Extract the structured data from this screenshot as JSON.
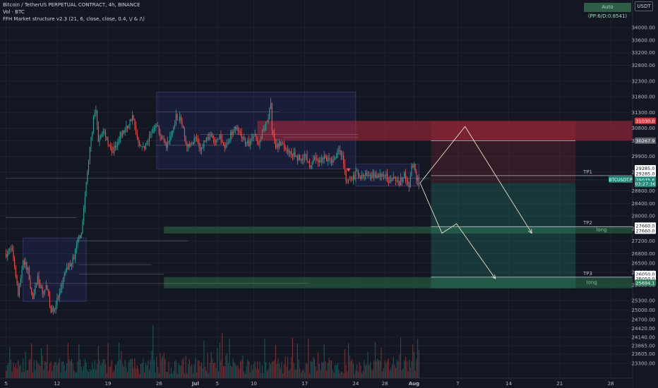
{
  "header": {
    "title": "Bitcoin / TetherUS PERPETUAL CONTRACT, 4h, BINANCE",
    "volume": "Vol · BTC",
    "indicator": "FFH Market structure v2.3 (21, 6, close, close, 0.4, \\/ & /\\)"
  },
  "currency_button": "USDT",
  "auto_badge": "Auto (PP:6/D:0.8541)",
  "colors": {
    "background": "#131722",
    "candle_up": "#26a69a",
    "candle_down": "#ef5350",
    "zone_red": "#b2283a",
    "zone_green": "#2e6b45",
    "range_box": "#2a2e6b",
    "projection": "#e8e3c8"
  },
  "chart_data": {
    "type": "candlestick",
    "y_axis": {
      "ylim": [
        22900,
        34700
      ],
      "ticks": [
        34000,
        33600,
        33200,
        32800,
        32300,
        31800,
        31300,
        30800,
        30400,
        29900,
        29400,
        28800,
        28400,
        28000,
        27600,
        27200,
        26800,
        26500,
        26200,
        25800,
        25300,
        25000,
        24700,
        24420,
        24140,
        23865,
        23605,
        23300
      ]
    },
    "x_axis": {
      "ticks": [
        {
          "label": "5",
          "pos": 0
        },
        {
          "label": "12",
          "pos": 42
        },
        {
          "label": "19",
          "pos": 84
        },
        {
          "label": "26",
          "pos": 126
        },
        {
          "label": "Jul",
          "pos": 156
        },
        {
          "label": "5",
          "pos": 174
        },
        {
          "label": "10",
          "pos": 204
        },
        {
          "label": "17",
          "pos": 246
        },
        {
          "label": "24",
          "pos": 288
        },
        {
          "label": "28",
          "pos": 312
        },
        {
          "label": "Aug",
          "pos": 336
        },
        {
          "label": "7",
          "pos": 372
        },
        {
          "label": "14",
          "pos": 414
        },
        {
          "label": "21",
          "pos": 456
        },
        {
          "label": "28",
          "pos": 498
        }
      ],
      "range": [
        -5,
        516
      ]
    },
    "price_anchors": [
      [
        0,
        26800
      ],
      [
        5,
        26950
      ],
      [
        9,
        25900
      ],
      [
        10,
        25450
      ],
      [
        14,
        26600
      ],
      [
        18,
        26300
      ],
      [
        22,
        25300
      ],
      [
        26,
        26050
      ],
      [
        30,
        25500
      ],
      [
        33,
        25750
      ],
      [
        37,
        24950
      ],
      [
        40,
        25100
      ],
      [
        45,
        25600
      ],
      [
        48,
        26150
      ],
      [
        52,
        26400
      ],
      [
        56,
        26700
      ],
      [
        59,
        27200
      ],
      [
        62,
        27500
      ],
      [
        65,
        28600
      ],
      [
        68,
        29800
      ],
      [
        70,
        30450
      ],
      [
        72,
        31100
      ],
      [
        74,
        31300
      ],
      [
        76,
        30300
      ],
      [
        80,
        30750
      ],
      [
        84,
        30350
      ],
      [
        88,
        30050
      ],
      [
        92,
        30450
      ],
      [
        96,
        30650
      ],
      [
        100,
        30850
      ],
      [
        104,
        31200
      ],
      [
        108,
        30500
      ],
      [
        112,
        30150
      ],
      [
        116,
        30300
      ],
      [
        120,
        30650
      ],
      [
        124,
        30900
      ],
      [
        128,
        30500
      ],
      [
        132,
        30250
      ],
      [
        136,
        30550
      ],
      [
        140,
        31200
      ],
      [
        144,
        31050
      ],
      [
        148,
        30300
      ],
      [
        152,
        30250
      ],
      [
        156,
        30500
      ],
      [
        160,
        30050
      ],
      [
        164,
        30450
      ],
      [
        168,
        30550
      ],
      [
        172,
        30300
      ],
      [
        176,
        30500
      ],
      [
        180,
        30200
      ],
      [
        184,
        30500
      ],
      [
        188,
        30900
      ],
      [
        192,
        30600
      ],
      [
        196,
        30400
      ],
      [
        200,
        30300
      ],
      [
        204,
        30550
      ],
      [
        208,
        30400
      ],
      [
        212,
        30700
      ],
      [
        216,
        31200
      ],
      [
        218,
        31500
      ],
      [
        219,
        30700
      ],
      [
        222,
        30200
      ],
      [
        226,
        30300
      ],
      [
        230,
        30150
      ],
      [
        234,
        30050
      ],
      [
        238,
        29900
      ],
      [
        242,
        29800
      ],
      [
        246,
        29950
      ],
      [
        250,
        29600
      ],
      [
        254,
        29850
      ],
      [
        258,
        29700
      ],
      [
        262,
        29900
      ],
      [
        266,
        29750
      ],
      [
        270,
        29800
      ],
      [
        274,
        30150
      ],
      [
        278,
        29700
      ],
      [
        280,
        29200
      ],
      [
        284,
        29100
      ],
      [
        288,
        29350
      ],
      [
        292,
        29250
      ],
      [
        296,
        29300
      ],
      [
        300,
        29200
      ],
      [
        304,
        29350
      ],
      [
        308,
        29250
      ],
      [
        312,
        29300
      ],
      [
        316,
        29100
      ],
      [
        320,
        29200
      ],
      [
        324,
        29050
      ],
      [
        328,
        29300
      ],
      [
        332,
        28900
      ],
      [
        334,
        29500
      ],
      [
        336,
        29550
      ],
      [
        338,
        29200
      ],
      [
        340,
        29050
      ]
    ],
    "price_labels": [
      {
        "text": "31030.0",
        "price": 31030,
        "bg": "#e0343f",
        "fg": "#ffffff"
      },
      {
        "text": "30267.9",
        "price": 30400,
        "bg": "#5d606b",
        "fg": "#ffffff"
      },
      {
        "text": "29285.0",
        "price": 29520,
        "bg": "#ffffff",
        "fg": "#131722"
      },
      {
        "text": "29285.0",
        "price": 29350,
        "bg": "#ffffff",
        "fg": "#131722"
      },
      {
        "text": "29075.6",
        "price": 29150,
        "bg": "#1e8a7a",
        "fg": "#ffffff"
      },
      {
        "text": "03:27:36",
        "price": 29020,
        "bg": "#1e8a7a",
        "fg": "#ffffff"
      },
      {
        "text": "27660.0",
        "price": 27690,
        "bg": "#ffffff",
        "fg": "#131722"
      },
      {
        "text": "27660.0",
        "price": 27530,
        "bg": "#ffffff",
        "fg": "#131722"
      },
      {
        "text": "26050.0",
        "price": 26150,
        "bg": "#ffffff",
        "fg": "#131722"
      },
      {
        "text": "26050.0",
        "price": 26000,
        "bg": "#ffffff",
        "fg": "#131722"
      },
      {
        "text": "25694.1",
        "price": 25870,
        "bg": "#2e7d5b",
        "fg": "#ffffff"
      }
    ],
    "current_price_tag": {
      "text": "BTCUSDT.P",
      "price": 29150
    },
    "zones": [
      {
        "kind": "supply",
        "x0": 207,
        "x1": 530,
        "y0": 30400,
        "y1": 31030,
        "color": "#b2283a"
      },
      {
        "kind": "demand",
        "x0": 130,
        "x1": 530,
        "y0": 27440,
        "y1": 27660,
        "color": "#2e6b45"
      },
      {
        "kind": "demand",
        "x0": 130,
        "x1": 530,
        "y0": 25694,
        "y1": 26050,
        "color": "#2e6b45"
      }
    ],
    "tp_lines": [
      {
        "label": "TP1",
        "price": 29285,
        "x_from": 350
      },
      {
        "label": "TP2",
        "price": 27660,
        "x_from": 350
      },
      {
        "label": "TP3",
        "price": 26050,
        "x_from": 350
      }
    ],
    "zone_labels": [
      {
        "text": "long",
        "price": 27550,
        "x": 486
      },
      {
        "text": "long",
        "price": 25880,
        "x": 478
      }
    ],
    "projection_box": {
      "x0": 350,
      "x1": 469,
      "y_top": 31030,
      "y_bottom": 25694
    },
    "projection_paths": [
      [
        [
          341,
          29050
        ],
        [
          378,
          30850
        ],
        [
          433,
          27450
        ]
      ],
      [
        [
          341,
          29050
        ],
        [
          359,
          27450
        ],
        [
          371,
          27750
        ],
        [
          403,
          26000
        ]
      ]
    ],
    "ranges": [
      {
        "x0": 124,
        "x1": 288,
        "y0": 29500,
        "y1": 31950
      },
      {
        "x0": 14,
        "x1": 66,
        "y0": 25280,
        "y1": 27300
      },
      {
        "x0": 288,
        "x1": 340,
        "y0": 28950,
        "y1": 29650
      }
    ]
  }
}
